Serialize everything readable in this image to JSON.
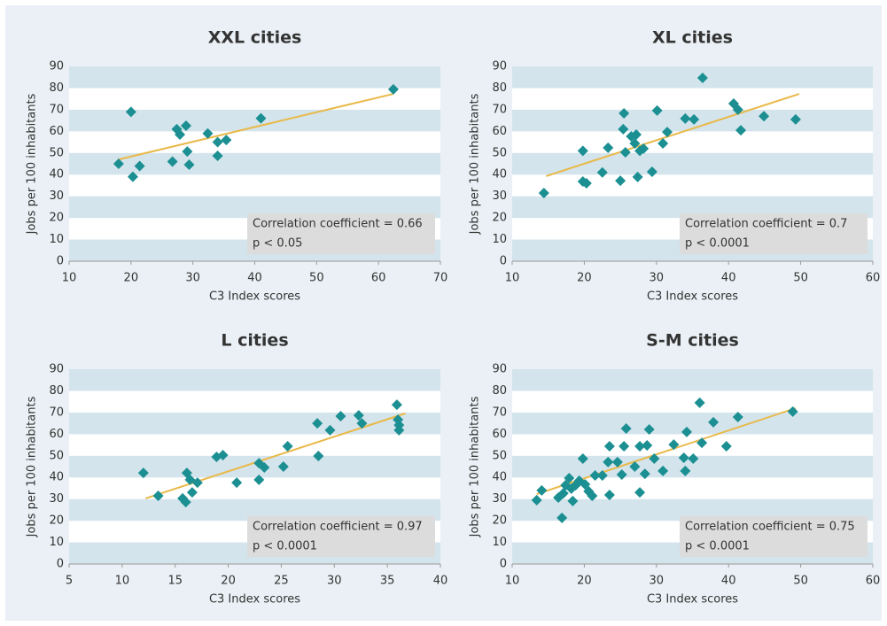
{
  "chart_data": [
    {
      "type": "scatter",
      "title": "XXL cities",
      "xlabel": "C3 Index scores",
      "ylabel": "Jobs per 100 inhabitants",
      "xlim": [
        10,
        70
      ],
      "xticks": [
        10,
        20,
        30,
        40,
        50,
        60,
        70
      ],
      "ylim": [
        0,
        90
      ],
      "yticks": [
        0,
        10,
        20,
        30,
        40,
        50,
        60,
        70,
        80,
        90
      ],
      "grid": true,
      "color": "#1b8f92",
      "trend_color": "#e9b949",
      "x": [
        18,
        20,
        20.3,
        21.4,
        26.7,
        27.4,
        27.9,
        28.9,
        29.1,
        29.4,
        32.4,
        34,
        34,
        35.4,
        41,
        62.4
      ],
      "y": [
        45,
        69,
        39,
        44,
        46,
        61,
        58.5,
        62.6,
        50.7,
        44.6,
        59,
        55,
        48.7,
        56,
        66,
        79.4
      ],
      "trendline": {
        "x": [
          18,
          62.4
        ],
        "y": [
          47,
          77.3
        ]
      },
      "annotation": [
        "Correlation coefficient = 0.66",
        "p < 0.05"
      ]
    },
    {
      "type": "scatter",
      "title": "XL cities",
      "xlabel": "C3 Index scores",
      "ylabel": "Jobs per 100 inhabitants",
      "xlim": [
        10,
        60
      ],
      "xticks": [
        10,
        20,
        30,
        40,
        50,
        60
      ],
      "ylim": [
        0,
        90
      ],
      "yticks": [
        0,
        10,
        20,
        30,
        40,
        50,
        60,
        70,
        80,
        90
      ],
      "grid": true,
      "color": "#1b8f92",
      "trend_color": "#e9b949",
      "x": [
        14.4,
        19.8,
        19.8,
        20.3,
        22.5,
        23.3,
        25,
        25.4,
        25.5,
        25.7,
        26.5,
        27,
        27.2,
        27.4,
        27.7,
        28.2,
        29.4,
        30.1,
        30.9,
        31.5,
        34,
        35.2,
        36.4,
        40.7,
        41.3,
        41.7,
        44.9,
        49.3
      ],
      "y": [
        31.5,
        51,
        36.8,
        36,
        41,
        52.4,
        37.2,
        61,
        68.3,
        50.3,
        57.7,
        54.4,
        58.5,
        38.9,
        51,
        52,
        41.3,
        69.6,
        54.4,
        59.7,
        65.9,
        65.5,
        84.7,
        72.8,
        70,
        60.5,
        67,
        65.5
      ],
      "trendline": {
        "x": [
          14.7,
          49.8
        ],
        "y": [
          39.3,
          77.3
        ]
      },
      "annotation": [
        "Correlation coefficient = 0.7",
        "p < 0.0001"
      ]
    },
    {
      "type": "scatter",
      "title": "L cities",
      "xlabel": "C3 Index scores",
      "ylabel": "Jobs per 100 inhabitants",
      "xlim": [
        5,
        40
      ],
      "xticks": [
        5,
        10,
        15,
        20,
        25,
        30,
        35,
        40
      ],
      "ylim": [
        0,
        90
      ],
      "yticks": [
        0,
        10,
        20,
        30,
        40,
        50,
        60,
        70,
        80,
        90
      ],
      "grid": true,
      "color": "#1b8f92",
      "trend_color": "#e9b949",
      "x": [
        12,
        13.4,
        15.7,
        16,
        16.1,
        16.4,
        16.6,
        17.1,
        18.9,
        19.5,
        20.8,
        22.9,
        22.9,
        23.4,
        25.2,
        25.6,
        28.4,
        28.5,
        29.6,
        30.6,
        32.3,
        32.6,
        35.9,
        36,
        36.1,
        36.1
      ],
      "y": [
        42.1,
        31.5,
        30.3,
        28.6,
        42.1,
        38.9,
        33.1,
        37.6,
        49.5,
        50.3,
        37.6,
        46.6,
        38.9,
        44.6,
        45,
        54.4,
        65,
        49.9,
        61.8,
        68.3,
        68.7,
        65,
        73.6,
        66.7,
        64.2,
        61.8
      ],
      "trendline": {
        "x": [
          12.2,
          36.7
        ],
        "y": [
          30.3,
          69.6
        ]
      },
      "annotation": [
        "Correlation coefficient = 0.97",
        "p < 0.0001"
      ]
    },
    {
      "type": "scatter",
      "title": "S-M cities",
      "xlabel": "C3 Index scores",
      "ylabel": "Jobs per 100 inhabitants",
      "xlim": [
        10,
        60
      ],
      "xticks": [
        10,
        20,
        30,
        40,
        50,
        60
      ],
      "ylim": [
        0,
        90
      ],
      "yticks": [
        0,
        10,
        20,
        30,
        40,
        50,
        60,
        70,
        80,
        90
      ],
      "grid": true,
      "color": "#1b8f92",
      "trend_color": "#e9b949",
      "x": [
        13.4,
        14.1,
        16.4,
        16.9,
        17.1,
        17.4,
        17.9,
        18.2,
        18.4,
        18.8,
        19.3,
        19.8,
        20.1,
        20.6,
        21.1,
        21.5,
        22.5,
        23.3,
        23.5,
        23.5,
        24.6,
        25.2,
        25.5,
        25.8,
        27,
        27.7,
        27.7,
        28.4,
        28.7,
        29,
        29.7,
        30.9,
        32.4,
        33.8,
        34,
        34.2,
        35.1,
        36,
        36.3,
        37.9,
        39.7,
        41.3,
        48.9
      ],
      "y": [
        29.5,
        34,
        30.7,
        21.3,
        32.7,
        36.4,
        39.7,
        34.8,
        29.1,
        36.4,
        38.5,
        48.7,
        36.8,
        33.6,
        31.5,
        40.9,
        40.9,
        47.1,
        31.9,
        54.4,
        47.1,
        41.3,
        54.4,
        62.6,
        45,
        54.4,
        33.1,
        41.7,
        54.8,
        62.2,
        48.7,
        43,
        55.2,
        49.1,
        43,
        61,
        48.7,
        74.5,
        56,
        65.5,
        54.4,
        67.9,
        70.4
      ],
      "trendline": {
        "x": [
          13.4,
          49.3
        ],
        "y": [
          32.3,
          72
        ]
      },
      "annotation": [
        "Correlation coefficient = 0.75",
        "p < 0.0001"
      ]
    }
  ]
}
